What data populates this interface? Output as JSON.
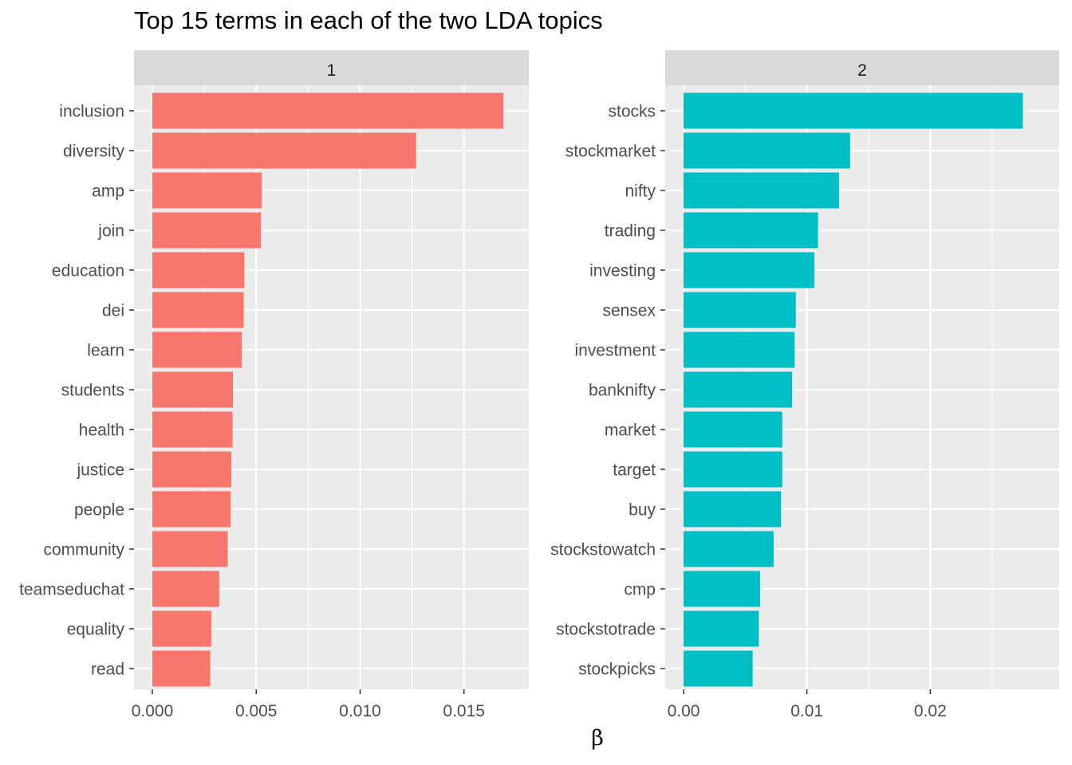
{
  "chart_data": {
    "type": "bar",
    "orientation": "horizontal",
    "title": "Top 15 terms in each of the two LDA topics",
    "xlabel": "β",
    "ylabel": "",
    "grid": true,
    "legend": "none",
    "facets": [
      {
        "label": "1",
        "color": "#F8766D",
        "xlim": [
          0,
          0.0172
        ],
        "xticks": [
          0,
          0.005,
          0.01,
          0.015
        ],
        "xtick_labels": [
          "0.000",
          "0.005",
          "0.010",
          "0.015"
        ],
        "categories": [
          "inclusion",
          "diversity",
          "amp",
          "join",
          "education",
          "dei",
          "learn",
          "students",
          "health",
          "justice",
          "people",
          "community",
          "teamseduchat",
          "equality",
          "read"
        ],
        "values": [
          0.0169,
          0.0127,
          0.00527,
          0.00523,
          0.00443,
          0.0044,
          0.00431,
          0.00388,
          0.00386,
          0.0038,
          0.00377,
          0.00363,
          0.00322,
          0.00284,
          0.00279
        ]
      },
      {
        "label": "2",
        "color": "#00BFC4",
        "xlim": [
          0,
          0.0289
        ],
        "xticks": [
          0,
          0.01,
          0.02
        ],
        "xtick_labels": [
          "0.00",
          "0.01",
          "0.02"
        ],
        "categories": [
          "stocks",
          "stockmarket",
          "nifty",
          "trading",
          "investing",
          "sensex",
          "investment",
          "banknifty",
          "market",
          "target",
          "buy",
          "stockstowatch",
          "cmp",
          "stockstotrade",
          "stockpicks"
        ],
        "values": [
          0.0275,
          0.0135,
          0.0126,
          0.0109,
          0.0106,
          0.0091,
          0.009,
          0.0088,
          0.008,
          0.008,
          0.0079,
          0.0073,
          0.0062,
          0.0061,
          0.0056
        ]
      }
    ]
  }
}
